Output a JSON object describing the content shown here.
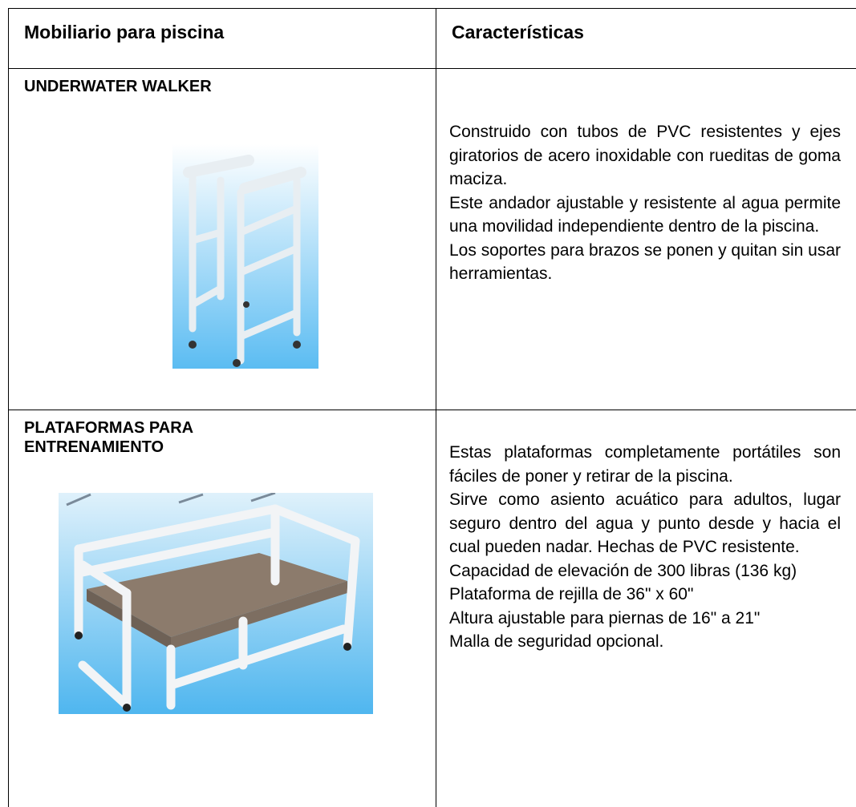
{
  "table": {
    "header": [
      "Mobiliario para piscina",
      "Características"
    ],
    "rows": [
      {
        "name": [
          "UNDERWATER WALKER"
        ],
        "description": [
          "Construido con tubos de PVC resistentes y ejes giratorios de acero inoxidable con rueditas de goma maciza.",
          "Este andador ajustable y resistente al agua permite una movilidad independiente dentro de la piscina.",
          "Los soportes para brazos se ponen y quitan sin usar herramientas."
        ]
      },
      {
        "name": [
          "PLATAFORMAS PARA",
          "ENTRENAMIENTO"
        ],
        "description": [
          "Estas plataformas completamente portátiles son fáciles de poner y retirar de la piscina.",
          "Sirve como asiento acuático para adultos, lugar seguro dentro del agua y punto desde y hacia el cual pueden nadar. Hechas de PVC resistente.",
          "Capacidad de elevación de 300 libras (136 kg)",
          "Plataforma de rejilla de 36\" x 60\"",
          "Altura ajustable para piernas de 16\" a 21\"",
          "Malla de seguridad opcional."
        ]
      }
    ]
  }
}
